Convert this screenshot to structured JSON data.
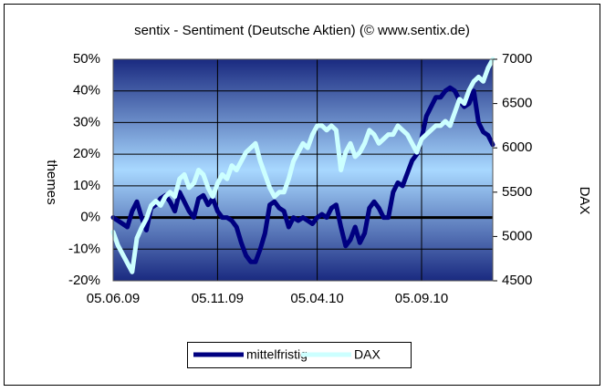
{
  "chart_data": {
    "type": "line",
    "title": "sentix - Sentiment (Deutsche Aktien) (© www.sentix.de)",
    "y_label": "themes",
    "y2_label": "DAX",
    "categories": [
      "05.06.09",
      null,
      null,
      null,
      null,
      null,
      null,
      null,
      null,
      null,
      null,
      null,
      null,
      null,
      null,
      null,
      null,
      null,
      null,
      null,
      null,
      null,
      "05.11.09",
      null,
      null,
      null,
      null,
      null,
      null,
      null,
      null,
      null,
      null,
      null,
      null,
      null,
      null,
      null,
      null,
      null,
      null,
      null,
      null,
      "05.04.10",
      null,
      null,
      null,
      null,
      null,
      null,
      null,
      null,
      null,
      null,
      null,
      null,
      null,
      null,
      null,
      null,
      null,
      null,
      null,
      null,
      null,
      "05.09.10",
      null,
      null,
      null,
      null,
      null,
      null,
      null,
      null,
      null,
      null,
      null,
      null,
      null,
      null,
      null
    ],
    "series": [
      {
        "name": "mittelfristig",
        "color": "#000080",
        "axis": "y",
        "values": [
          0,
          -1,
          -2,
          -3,
          2,
          5,
          0,
          -4,
          3,
          4,
          6,
          7,
          5,
          2,
          8,
          5,
          2,
          0,
          6,
          7,
          4,
          6,
          2,
          0,
          0,
          -1,
          -3,
          -8,
          -12,
          -14,
          -14,
          -10,
          -5,
          4,
          5,
          3,
          2,
          -3,
          0,
          -1,
          0,
          -1,
          -2,
          0,
          1,
          0,
          3,
          4,
          -3,
          -9,
          -7,
          -3,
          -8,
          -5,
          3,
          5,
          3,
          0,
          0,
          8,
          11,
          10,
          14,
          18,
          20,
          25,
          32,
          35,
          38,
          38,
          40,
          41,
          40,
          37,
          35,
          36,
          40,
          30,
          27,
          26,
          23
        ]
      },
      {
        "name": "DAX",
        "color": "#ccffff",
        "axis": "y2",
        "values": [
          5050,
          4900,
          4800,
          4700,
          4600,
          4980,
          5100,
          5200,
          5350,
          5400,
          5350,
          5450,
          5500,
          5450,
          5650,
          5700,
          5550,
          5600,
          5750,
          5700,
          5550,
          5450,
          5600,
          5700,
          5650,
          5800,
          5750,
          5850,
          5950,
          6000,
          6050,
          5850,
          5700,
          5550,
          5450,
          5500,
          5500,
          5650,
          5850,
          5950,
          6050,
          6000,
          6150,
          6250,
          6250,
          6200,
          6250,
          6200,
          5750,
          5950,
          6050,
          5900,
          5950,
          6050,
          6200,
          6150,
          6050,
          6100,
          6150,
          6150,
          6250,
          6200,
          6150,
          6050,
          5950,
          6100,
          6150,
          6200,
          6250,
          6250,
          6300,
          6250,
          6400,
          6550,
          6500,
          6650,
          6750,
          6800,
          6750,
          6900,
          7000
        ]
      }
    ],
    "ylim": [
      -20,
      50
    ],
    "yticks": [
      {
        "value": -20,
        "label": "-20%"
      },
      {
        "value": -10,
        "label": "-10%"
      },
      {
        "value": 0,
        "label": "0%"
      },
      {
        "value": 10,
        "label": "10%"
      },
      {
        "value": 20,
        "label": "20%"
      },
      {
        "value": 30,
        "label": "30%"
      },
      {
        "value": 40,
        "label": "40%"
      },
      {
        "value": 50,
        "label": "50%"
      }
    ],
    "y2lim": [
      4500,
      7000
    ],
    "y2ticks": [
      4500,
      5000,
      5500,
      6000,
      6500,
      7000
    ],
    "grid": true,
    "legend": "bottom"
  }
}
